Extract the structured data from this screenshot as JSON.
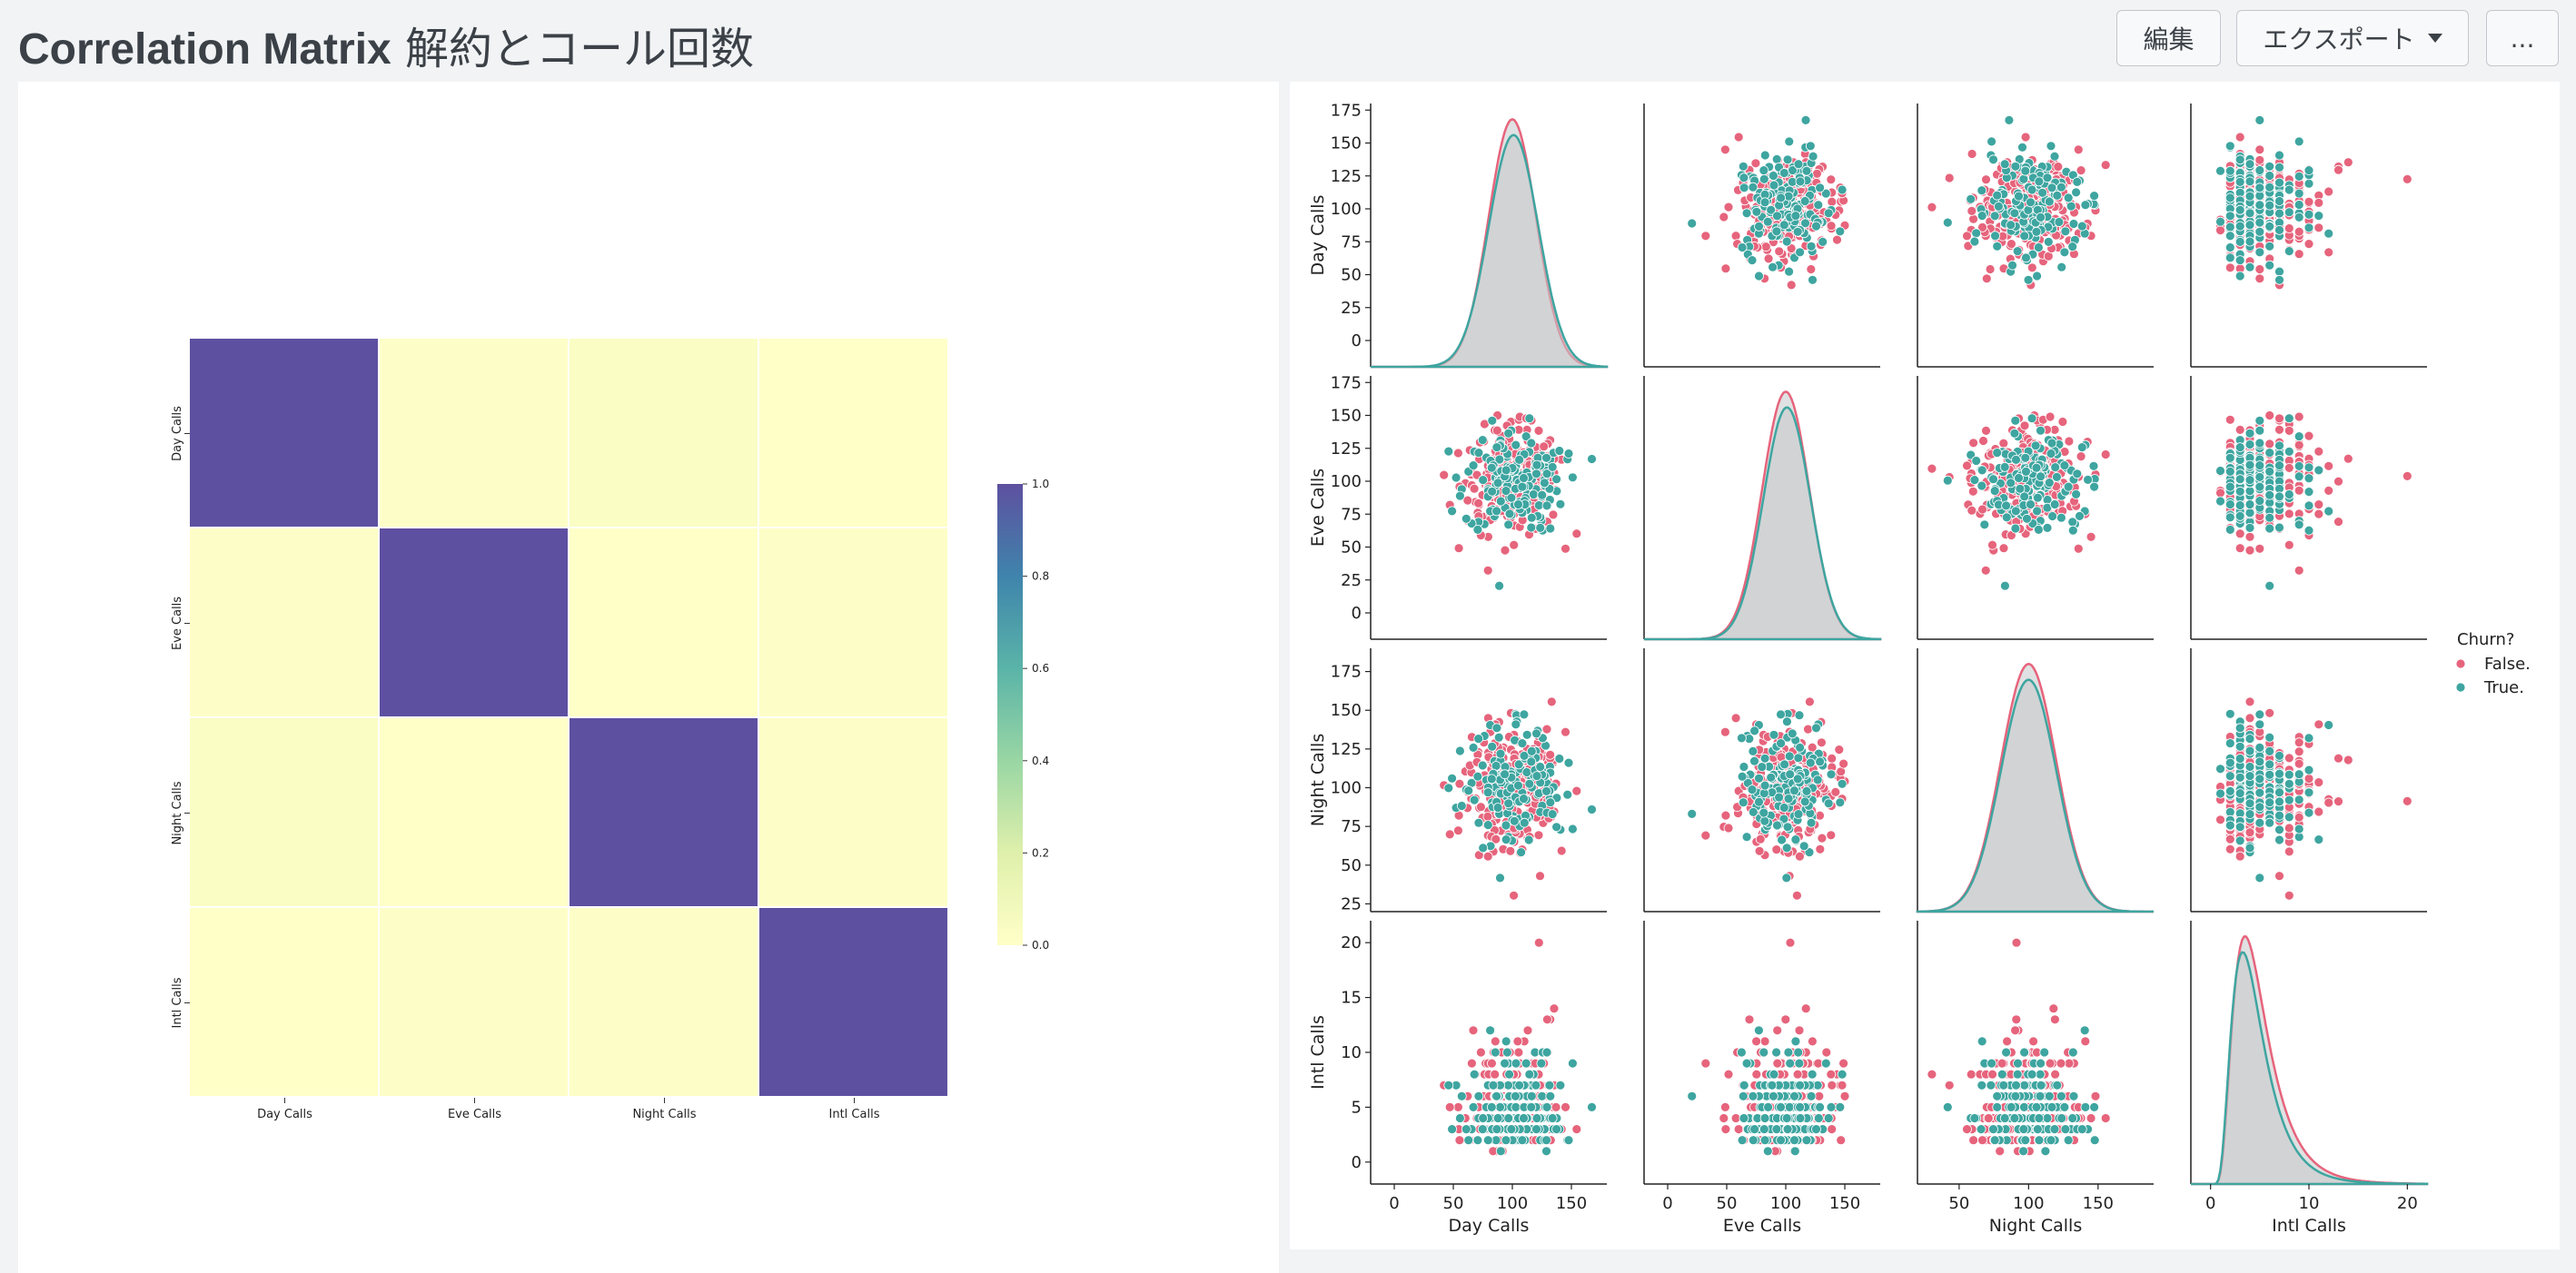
{
  "header": {
    "title_prefix": "Correlation Matrix",
    "title_suffix": " 解約とコール回数",
    "edit_label": "編集",
    "export_label": "エクスポート",
    "more_label": "..."
  },
  "icons": {
    "export_caret": "chevron-down-icon",
    "more": "more-icon"
  },
  "colors": {
    "background": "#f1f3f5",
    "panel": "#ffffff",
    "heatmap_high": "#5e50a0",
    "heatmap_low": "#ffffc8",
    "churn_false": "#e6647c",
    "churn_true": "#3ea5a0",
    "kde_fill": "#c6c8ca"
  },
  "chart_data": [
    {
      "type": "heatmap",
      "variables": [
        "Day Calls",
        "Eve Calls",
        "Night Calls",
        "Intl Calls"
      ],
      "matrix": [
        [
          1.0,
          0.01,
          0.03,
          0.0
        ],
        [
          0.01,
          1.0,
          0.0,
          0.01
        ],
        [
          0.03,
          0.0,
          1.0,
          0.01
        ],
        [
          0.0,
          0.01,
          0.01,
          1.0
        ]
      ],
      "colorbar": {
        "range": [
          0.0,
          1.0
        ],
        "ticks": [
          "0.0",
          "0.2",
          "0.4",
          "0.6",
          "0.8",
          "1.0"
        ]
      }
    },
    {
      "type": "scatter",
      "subtype": "pairplot",
      "variables": [
        "Day Calls",
        "Eve Calls",
        "Night Calls",
        "Intl Calls"
      ],
      "ranges": {
        "Day Calls": [
          -20,
          180
        ],
        "Eve Calls": [
          -20,
          180
        ],
        "Night Calls": [
          20,
          190
        ],
        "Intl Calls": [
          -2,
          22
        ]
      },
      "y_ticks": {
        "Day Calls": [
          "0",
          "25",
          "50",
          "75",
          "100",
          "125",
          "150",
          "175"
        ],
        "Eve Calls": [
          "0",
          "25",
          "50",
          "75",
          "100",
          "125",
          "150",
          "175"
        ],
        "Night Calls": [
          "25",
          "50",
          "75",
          "100",
          "125",
          "150",
          "175"
        ],
        "Intl Calls": [
          "0",
          "5",
          "10",
          "15",
          "20"
        ]
      },
      "x_ticks": {
        "Day Calls": [
          "0",
          "50",
          "100",
          "150"
        ],
        "Eve Calls": [
          "0",
          "50",
          "100",
          "150"
        ],
        "Night Calls": [
          "50",
          "100",
          "150"
        ],
        "Intl Calls": [
          "0",
          "10",
          "20"
        ]
      },
      "legend": {
        "title": "Churn?",
        "placement": "right",
        "entries": [
          "False.",
          "True."
        ]
      },
      "distributions": {
        "Day Calls": {
          "False.": {
            "mean": 100,
            "std": 20
          },
          "True.": {
            "mean": 101,
            "std": 21
          }
        },
        "Eve Calls": {
          "False.": {
            "mean": 100,
            "std": 20
          },
          "True.": {
            "mean": 101,
            "std": 20
          }
        },
        "Night Calls": {
          "False.": {
            "mean": 100,
            "std": 20
          },
          "True.": {
            "mean": 100,
            "std": 20
          }
        },
        "Intl Calls": {
          "False.": {
            "mean": 4.5,
            "std": 2.4
          },
          "True.": {
            "mean": 4.2,
            "std": 2.5
          }
        }
      },
      "sample_counts": {
        "False.": 260,
        "True.": 150
      }
    }
  ]
}
